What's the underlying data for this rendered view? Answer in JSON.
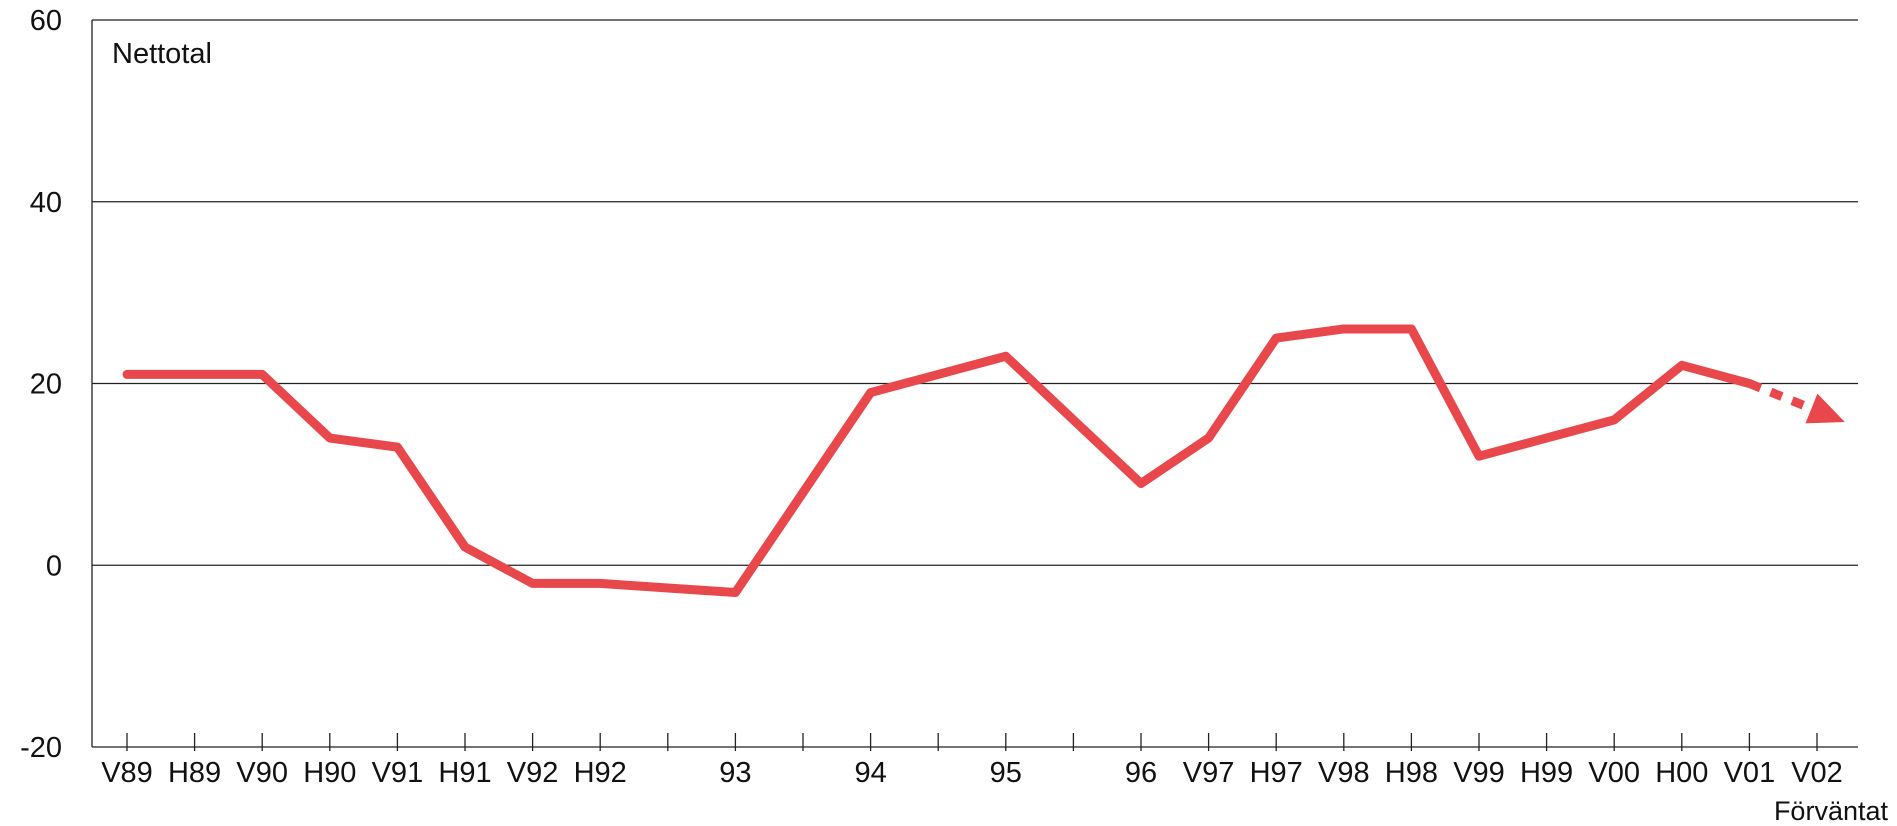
{
  "chart_data": {
    "type": "line",
    "ylabel": "Nettotal",
    "ylim": [
      -20,
      60
    ],
    "yticks": [
      -20,
      0,
      20,
      40,
      60
    ],
    "grid": true,
    "categories": [
      "V89",
      "H89",
      "V90",
      "H90",
      "V91",
      "H91",
      "V92",
      "H92",
      "",
      "93",
      "",
      "94",
      "",
      "95",
      "",
      "96",
      "V97",
      "H97",
      "V98",
      "H98",
      "V99",
      "H99",
      "V00",
      "H00",
      "V01",
      "V02"
    ],
    "series": [
      {
        "values": [
          21,
          21,
          21,
          14,
          13,
          2,
          -2,
          -2,
          -2.5,
          -3,
          8,
          19,
          21,
          23,
          16,
          9,
          14,
          25,
          26,
          26,
          12,
          14,
          16,
          22,
          20,
          17
        ],
        "color": "#e8474c",
        "forecast_from_index": 24
      }
    ],
    "annotations": [
      "Förväntat"
    ]
  }
}
